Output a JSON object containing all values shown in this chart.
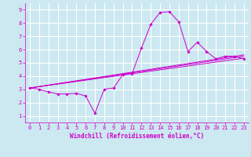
{
  "background_color": "#cce8f0",
  "grid_color": "#ffffff",
  "line_color": "#cc00cc",
  "marker_color": "#cc00cc",
  "xlabel": "Windchill (Refroidissement éolien,°C)",
  "xlim": [
    -0.5,
    23.5
  ],
  "ylim": [
    0.5,
    9.5
  ],
  "xticks": [
    0,
    1,
    2,
    3,
    4,
    5,
    6,
    7,
    8,
    9,
    10,
    11,
    12,
    13,
    14,
    15,
    16,
    17,
    18,
    19,
    20,
    21,
    22,
    23
  ],
  "yticks": [
    1,
    2,
    3,
    4,
    5,
    6,
    7,
    8,
    9
  ],
  "series": [
    {
      "x": [
        0,
        1,
        2,
        3,
        4,
        5,
        6,
        7,
        8,
        9,
        10,
        11,
        12,
        13,
        14,
        15,
        16,
        17,
        18,
        19,
        20,
        21,
        22,
        23
      ],
      "y": [
        3.1,
        3.0,
        2.8,
        2.65,
        2.65,
        2.7,
        2.5,
        1.2,
        3.0,
        3.1,
        4.1,
        4.2,
        6.1,
        7.9,
        8.8,
        8.85,
        8.1,
        5.85,
        6.55,
        5.85,
        5.3,
        5.5,
        5.5,
        5.3
      ],
      "marker": true
    },
    {
      "x": [
        0,
        23
      ],
      "y": [
        3.1,
        5.35
      ],
      "marker": false
    },
    {
      "x": [
        0,
        23
      ],
      "y": [
        3.1,
        5.5
      ],
      "marker": false
    },
    {
      "x": [
        0,
        23
      ],
      "y": [
        3.1,
        5.6
      ],
      "marker": false
    }
  ],
  "font_size": 5.5,
  "tick_font_size": 5.0,
  "xlabel_font_size": 5.5
}
